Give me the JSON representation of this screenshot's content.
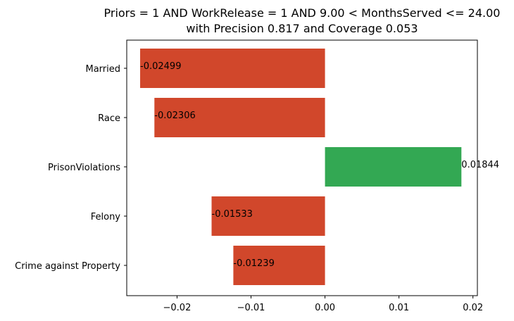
{
  "chart_data": {
    "type": "bar",
    "orientation": "horizontal",
    "title_lines": [
      "Priors = 1 AND WorkRelease = 1 AND 9.00 < MonthsServed <= 24.00",
      "with Precision 0.817 and Coverage 0.053"
    ],
    "categories": [
      "Married",
      "Race",
      "PrisonViolations",
      "Felony",
      "Crime against Property"
    ],
    "values": [
      -0.02499,
      -0.02306,
      0.01844,
      -0.01533,
      -0.01239
    ],
    "value_labels": [
      "-0.02499",
      "-0.02306",
      "0.01844",
      "-0.01533",
      "-0.01239"
    ],
    "xlim": [
      -0.0268,
      0.0206
    ],
    "xticks": [
      -0.02,
      -0.01,
      0.0,
      0.01,
      0.02
    ],
    "xtick_labels": [
      "−0.02",
      "−0.01",
      "0.00",
      "0.01",
      "0.02"
    ],
    "xlabel": "",
    "ylabel": "",
    "grid": false,
    "colors": {
      "negative": "#d1472b",
      "positive": "#33a853"
    }
  }
}
